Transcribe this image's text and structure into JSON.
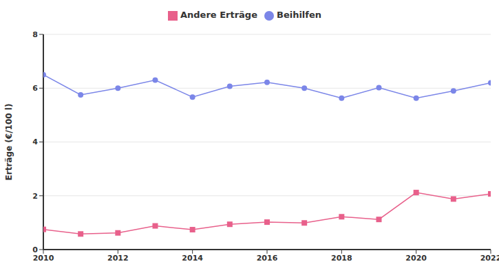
{
  "chart_data": {
    "type": "line",
    "y_label": "Erträge (€/100 l)",
    "x": [
      2010,
      2011,
      2012,
      2013,
      2014,
      2015,
      2016,
      2017,
      2018,
      2019,
      2020,
      2021,
      2022
    ],
    "xlim": [
      2010,
      2022
    ],
    "xticks": [
      2010,
      2012,
      2014,
      2016,
      2018,
      2020,
      2022
    ],
    "ylim": [
      0,
      8
    ],
    "yticks": [
      0,
      2,
      4,
      6,
      8
    ],
    "grid": true,
    "legend": "top",
    "series": [
      {
        "name": "Beihilfen",
        "color": "#7b86e8",
        "marker": "circle",
        "values": [
          6.5,
          5.75,
          6.0,
          6.3,
          5.67,
          6.07,
          6.22,
          6.0,
          5.63,
          6.02,
          5.63,
          5.9,
          6.2
        ]
      },
      {
        "name": "Andere Erträge",
        "color": "#e8608b",
        "marker": "square",
        "values": [
          0.75,
          0.58,
          0.62,
          0.88,
          0.74,
          0.94,
          1.02,
          0.99,
          1.22,
          1.12,
          2.12,
          1.88,
          2.07
        ]
      }
    ]
  }
}
